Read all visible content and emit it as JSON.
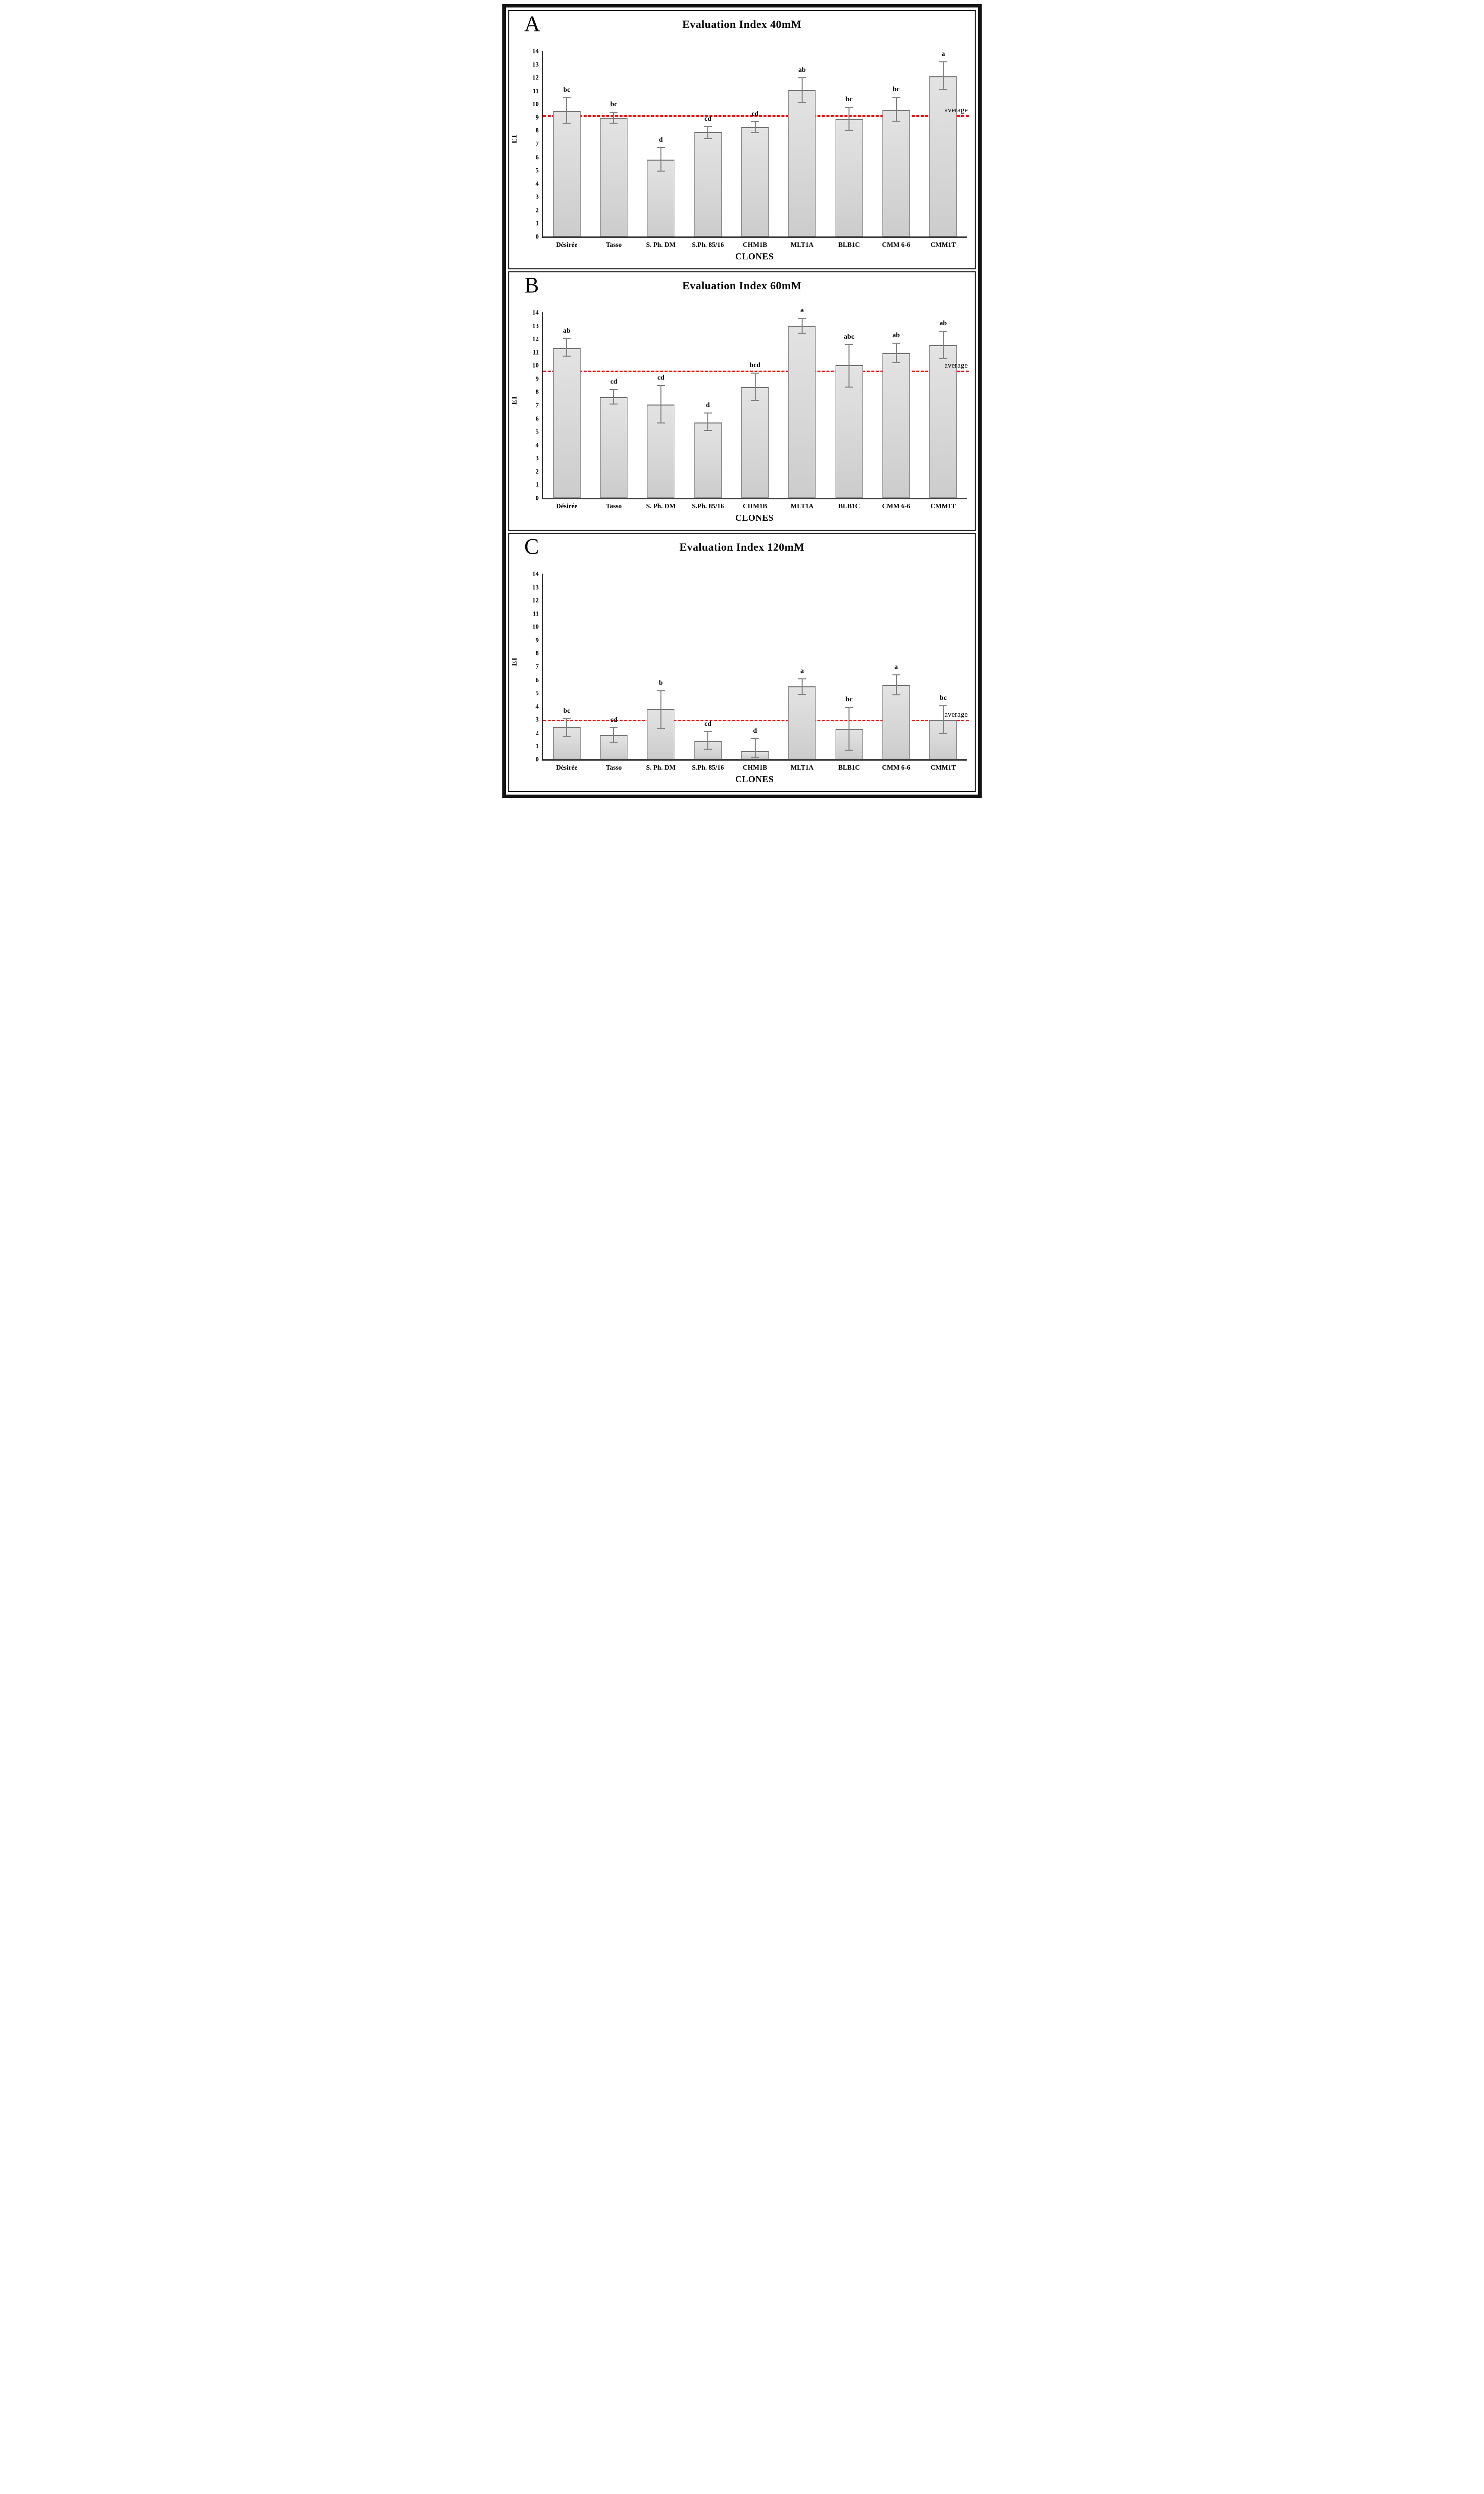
{
  "figure": {
    "panels": [
      {
        "letter": "A"
      },
      {
        "letter": "B"
      },
      {
        "letter": "C"
      }
    ],
    "colors": {
      "average_line_red": "#ff0000",
      "bar_fill": "#d9d9d9",
      "bar_border": "#8a8a8a",
      "error_bar_gray": "#7f7f7f",
      "axis_dark": "#3f3f3f",
      "border_black": "#141414"
    }
  },
  "chart_data": [
    {
      "panel_letter": "A",
      "type": "bar",
      "title": "Evaluation Index 40mM",
      "xlabel": "CLONES",
      "ylabel": "EI",
      "ylim": [
        0,
        14
      ],
      "yticks": [
        0,
        1,
        2,
        3,
        4,
        5,
        6,
        7,
        8,
        9,
        10,
        11,
        12,
        13,
        14
      ],
      "grid": false,
      "legend": "none",
      "categories": [
        "Désirée",
        "Tasso",
        "S. Ph. DM",
        "S.Ph. 85/16",
        "CHM1B",
        "MLT1A",
        "BLB1C",
        "CMM 6-6",
        "CMM1T"
      ],
      "values": [
        9.45,
        8.95,
        5.8,
        7.85,
        8.25,
        11.05,
        8.85,
        9.55,
        12.1
      ],
      "error_low": [
        8.5,
        8.5,
        4.9,
        7.35,
        7.8,
        10.05,
        7.95,
        8.65,
        11.05
      ],
      "error_high": [
        10.5,
        9.4,
        6.75,
        8.3,
        8.7,
        12.0,
        9.8,
        10.55,
        13.2
      ],
      "letters": [
        "bc",
        "bc",
        "d",
        "cd",
        "cd",
        "ab",
        "bc",
        "bc",
        "a"
      ],
      "average_value": 9.05,
      "average_label": "average"
    },
    {
      "panel_letter": "B",
      "type": "bar",
      "title": "Evaluation Index 60mM",
      "xlabel": "CLONES",
      "ylabel": "EI",
      "ylim": [
        0,
        14
      ],
      "yticks": [
        0,
        1,
        2,
        3,
        4,
        5,
        6,
        7,
        8,
        9,
        10,
        11,
        12,
        13,
        14
      ],
      "grid": false,
      "legend": "none",
      "categories": [
        "Désirée",
        "Tasso",
        "S. Ph. DM",
        "S.Ph. 85/16",
        "CHM1B",
        "MLT1A",
        "BLB1C",
        "CMM 6-6",
        "CMM1T"
      ],
      "values": [
        11.3,
        7.6,
        7.05,
        5.7,
        8.35,
        13.0,
        10.0,
        10.9,
        11.5
      ],
      "error_low": [
        10.65,
        7.05,
        5.6,
        5.05,
        7.3,
        12.4,
        8.3,
        10.15,
        10.45
      ],
      "error_high": [
        12.05,
        8.2,
        8.5,
        6.45,
        9.45,
        13.6,
        11.6,
        11.7,
        12.6
      ],
      "letters": [
        "ab",
        "cd",
        "cd",
        "d",
        "bcd",
        "a",
        "abc",
        "ab",
        "ab"
      ],
      "average_value": 9.5,
      "average_label": "average"
    },
    {
      "panel_letter": "C",
      "type": "bar",
      "title": "Evaluation Index 120mM",
      "xlabel": "CLONES",
      "ylabel": "EI",
      "ylim": [
        0,
        14
      ],
      "yticks": [
        0,
        1,
        2,
        3,
        4,
        5,
        6,
        7,
        8,
        9,
        10,
        11,
        12,
        13,
        14
      ],
      "grid": false,
      "legend": "none",
      "categories": [
        "Désirée",
        "Tasso",
        "S. Ph. DM",
        "S.Ph. 85/16",
        "CHM1B",
        "MLT1A",
        "BLB1C",
        "CMM 6-6",
        "CMM1T"
      ],
      "values": [
        2.4,
        1.8,
        3.8,
        1.4,
        0.6,
        5.5,
        2.3,
        5.6,
        2.95
      ],
      "error_low": [
        1.7,
        1.25,
        2.3,
        0.7,
        0.1,
        4.85,
        0.65,
        4.8,
        1.9
      ],
      "error_high": [
        3.1,
        2.4,
        5.2,
        2.1,
        1.6,
        6.1,
        3.95,
        6.4,
        4.05
      ],
      "letters": [
        "bc",
        "cd",
        "b",
        "cd",
        "d",
        "a",
        "bc",
        "a",
        "bc"
      ],
      "average_value": 2.85,
      "average_label": "average"
    }
  ]
}
